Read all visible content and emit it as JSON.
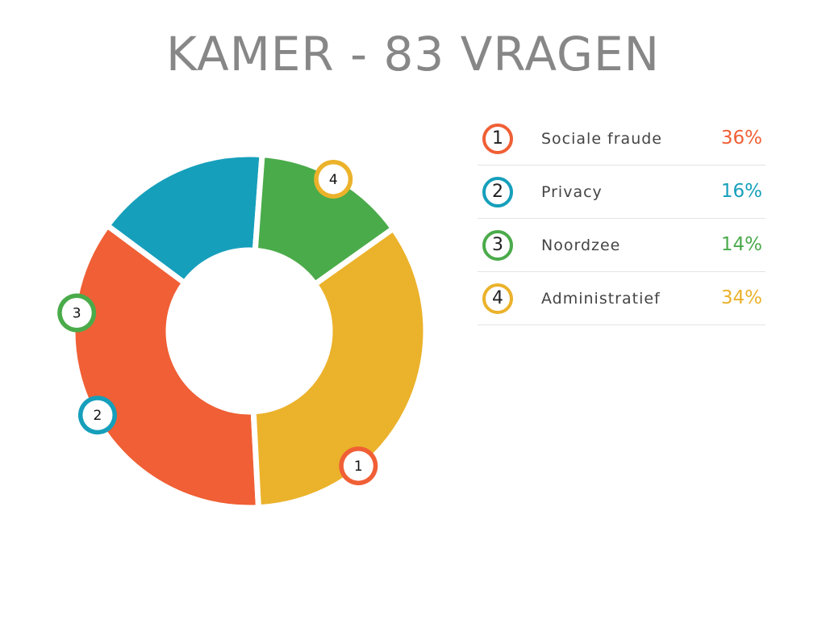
{
  "chart_data": {
    "type": "pie",
    "title": "KAMER - 83 VRAGEN",
    "categories": [
      "Sociale fraude",
      "Privacy",
      "Noordzee",
      "Administratief"
    ],
    "markers": [
      "1",
      "2",
      "3",
      "4"
    ],
    "values": [
      36,
      16,
      14,
      34
    ],
    "value_labels": [
      "36%",
      "16%",
      "14%",
      "34%"
    ],
    "colors": [
      "#f05f35",
      "#169fbb",
      "#4aab4a",
      "#ebb22b"
    ],
    "style": "donut",
    "legend_position": "right"
  }
}
